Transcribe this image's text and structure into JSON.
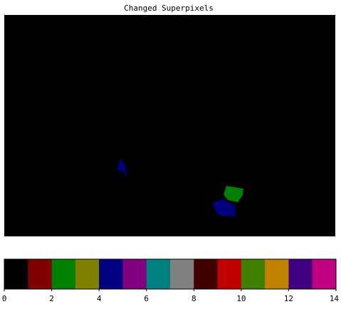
{
  "chart_data": {
    "type": "heatmap",
    "title": "Changed Superpixels",
    "background_color": "#000000",
    "regions": [
      {
        "value": 4,
        "color": "#00007f",
        "polygon": [
          [
            160,
            211
          ],
          [
            163,
            203
          ],
          [
            170,
            210
          ],
          [
            172,
            229
          ],
          [
            168,
            221
          ],
          [
            158,
            217
          ]
        ]
      },
      {
        "value": 3,
        "color": "#007f00",
        "polygon": [
          [
            312,
            240
          ],
          [
            336,
            244
          ],
          [
            335,
            253
          ],
          [
            328,
            263
          ],
          [
            314,
            260
          ],
          [
            308,
            252
          ]
        ]
      },
      {
        "value": 4,
        "color": "#00007f",
        "polygon": [
          [
            293,
            264
          ],
          [
            307,
            259
          ],
          [
            324,
            268
          ],
          [
            325,
            283
          ],
          [
            303,
            282
          ],
          [
            298,
            278
          ]
        ]
      }
    ],
    "image_extent": [
      0,
      465,
      0,
      311
    ],
    "colorbar": {
      "range": [
        0,
        14
      ],
      "ticks": [
        "0",
        "2",
        "4",
        "6",
        "8",
        "10",
        "12",
        "14"
      ],
      "tick_values": [
        0,
        2,
        4,
        6,
        8,
        10,
        12,
        14
      ],
      "colors": [
        "#000000",
        "#800000",
        "#008000",
        "#808000",
        "#000080",
        "#800080",
        "#008080",
        "#808080",
        "#400000",
        "#c00000",
        "#408000",
        "#c08000",
        "#400080",
        "#c00080"
      ]
    }
  }
}
